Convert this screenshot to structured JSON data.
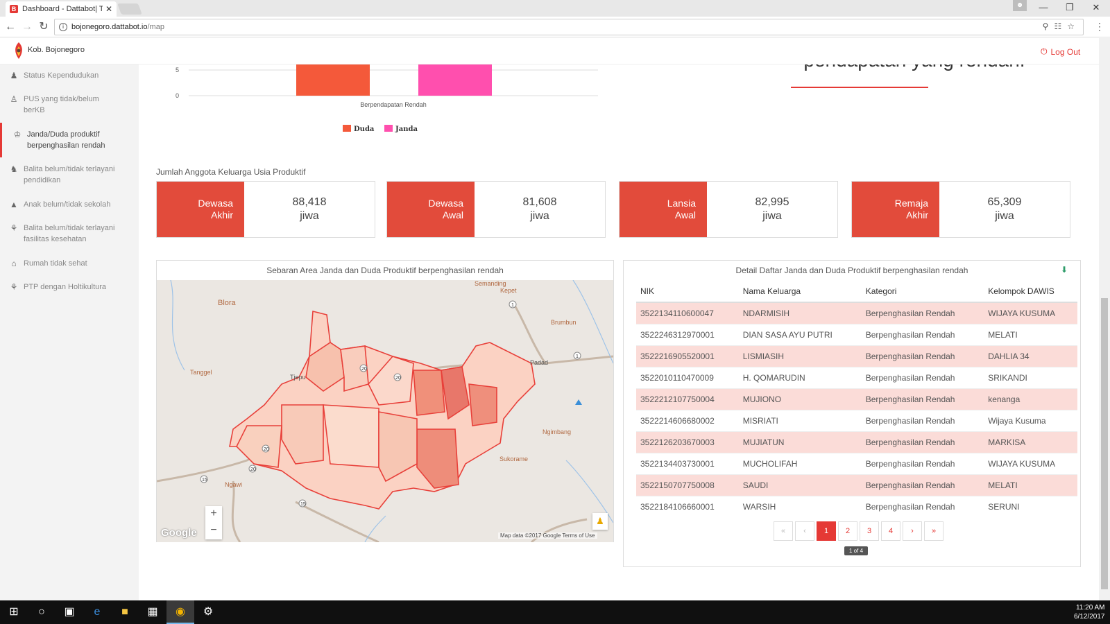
{
  "browser": {
    "tab_title": "Dashboard - Dattabot| Te",
    "tab_favicon": "B",
    "tab_close": "✕",
    "url_host": "bojonegoro.dattabot.io",
    "url_path": "/map",
    "profile_icon": "user-icon"
  },
  "window_controls": {
    "minimize": "—",
    "restore": "❐",
    "close": "✕"
  },
  "app": {
    "brand": "Kob. Bojonegoro",
    "logout": "Log Out",
    "accent_color": "#e53935"
  },
  "sidebar": {
    "items": [
      {
        "label": "Status Kependudukan",
        "icon": "person-icon"
      },
      {
        "label": "PUS yang tidak/belum berKB",
        "icon": "family-icon"
      },
      {
        "label": "Janda/Duda produktif berpenghasilan rendah",
        "icon": "worker-icon",
        "active": true
      },
      {
        "label": "Balita belum/tidak terlayani pendidikan",
        "icon": "child-icon"
      },
      {
        "label": "Anak belum/tidak sekolah",
        "icon": "graduation-cap-icon"
      },
      {
        "label": "Balita belum/tidak terlayani fasilitas kesehatan",
        "icon": "stroller-icon"
      },
      {
        "label": "Rumah tidak sehat",
        "icon": "house-icon"
      },
      {
        "label": "PTP dengan Holtikultura",
        "icon": "plant-icon"
      }
    ]
  },
  "heading": {
    "text": "pendapatan yang rendah."
  },
  "chart_data": {
    "type": "bar",
    "categories": [
      "Berpendapatan Rendah"
    ],
    "series": [
      {
        "name": "Duda",
        "values": [
          9
        ],
        "color": "#f4593a"
      },
      {
        "name": "Janda",
        "values": [
          9
        ],
        "color": "#ff4fae"
      }
    ],
    "yticks": [
      0,
      5
    ],
    "ylim": [
      0,
      10
    ],
    "xlabel": "",
    "ylabel": ""
  },
  "section_title": "Jumlah Anggota Keluarga Usia Produktif",
  "stats": [
    {
      "label_1": "Dewasa",
      "label_2": "Akhir",
      "value": "88,418",
      "unit": "jiwa"
    },
    {
      "label_1": "Dewasa",
      "label_2": "Awal",
      "value": "81,608",
      "unit": "jiwa"
    },
    {
      "label_1": "Lansia",
      "label_2": "Awal",
      "value": "82,995",
      "unit": "jiwa"
    },
    {
      "label_1": "Remaja",
      "label_2": "Akhir",
      "value": "65,309",
      "unit": "jiwa"
    }
  ],
  "map": {
    "title": "Sebaran Area Janda dan Duda Produktif berpenghasilan rendah",
    "places": [
      "Blora",
      "Semanding",
      "Kepet",
      "Brumbun",
      "Tanggel",
      "Tjepu",
      "Padad",
      "Ngimbang",
      "Sukorame",
      "Ngawi"
    ],
    "road_labels": [
      "20",
      "20",
      "20",
      "20",
      "15",
      "15",
      "1",
      "1"
    ],
    "zoom_in": "+",
    "zoom_out": "−",
    "google": "Google",
    "attribution": "Map data ©2017 Google   Terms of Use"
  },
  "table": {
    "title": "Detail Daftar Janda dan Duda Produktif berpenghasilan rendah",
    "columns": [
      "NIK",
      "Nama Keluarga",
      "Kategori",
      "Kelompok DAWIS"
    ],
    "rows": [
      [
        "3522134110600047",
        "NDARMISIH",
        "Berpenghasilan Rendah",
        "WIJAYA KUSUMA"
      ],
      [
        "3522246312970001",
        "DIAN SASA AYU PUTRI",
        "Berpenghasilan Rendah",
        "MELATI"
      ],
      [
        "3522216905520001",
        "LISMIASIH",
        "Berpenghasilan Rendah",
        "DAHLIA 34"
      ],
      [
        "3522010110470009",
        "H. QOMARUDIN",
        "Berpenghasilan Rendah",
        "SRIKANDI"
      ],
      [
        "3522212107750004",
        "MUJIONO",
        "Berpenghasilan Rendah",
        "kenanga"
      ],
      [
        "3522214606680002",
        "MISRIATI",
        "Berpenghasilan Rendah",
        "Wijaya Kusuma"
      ],
      [
        "3522126203670003",
        "MUJIATUN",
        "Berpenghasilan Rendah",
        "MARKISA"
      ],
      [
        "3522134403730001",
        "MUCHOLIFAH",
        "Berpenghasilan Rendah",
        "WIJAYA KUSUMA"
      ],
      [
        "3522150707750008",
        "SAUDI",
        "Berpenghasilan Rendah",
        "MELATI"
      ],
      [
        "3522184106660001",
        "WARSIH",
        "Berpenghasilan Rendah",
        "SERUNI"
      ]
    ],
    "pager": [
      "«",
      "‹",
      "1",
      "2",
      "3",
      "4",
      "›",
      "»"
    ],
    "current_page": "1",
    "page_info": "1 of 4"
  },
  "taskbar": {
    "time": "11:20 AM",
    "date": "6/12/2017"
  }
}
